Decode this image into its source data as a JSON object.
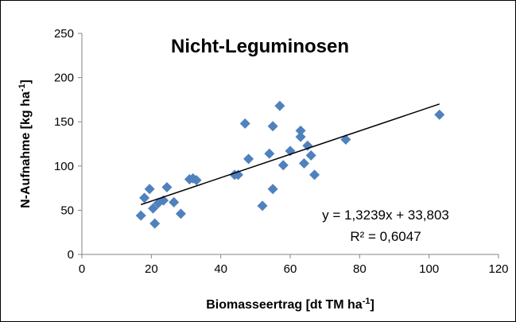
{
  "chart_data": {
    "type": "scatter",
    "title": "Nicht-Leguminosen",
    "xlabel": [
      "Biomasseertrag [dt TM ha",
      "-1",
      "]"
    ],
    "ylabel": [
      "N-Aufnahme [kg ha",
      "-1",
      "]"
    ],
    "x": [
      17,
      18,
      19.5,
      20.5,
      21,
      22,
      23.5,
      24.5,
      26.5,
      28.5,
      31,
      32,
      33,
      44,
      45,
      47,
      48,
      52,
      54,
      55,
      55,
      57,
      58,
      60,
      63,
      63,
      64,
      65,
      66,
      67,
      76,
      103
    ],
    "series": [
      {
        "name": "N-Aufnahme",
        "color": "#4f81bd",
        "values": [
          44,
          64,
          74,
          52,
          35,
          58,
          61,
          76,
          59,
          46,
          85,
          86,
          84,
          90,
          90,
          148,
          108,
          55,
          114,
          145,
          74,
          168,
          101,
          117,
          140,
          133,
          103,
          123,
          112,
          90,
          130,
          158
        ]
      }
    ],
    "trendline": {
      "slope": 1.3239,
      "intercept": 33.803,
      "color": "#000000"
    },
    "annotations": [
      "y = 1,3239x + 33,803",
      "R² = 0,6047"
    ],
    "xlim": [
      0,
      120
    ],
    "xticks": [
      0,
      20,
      40,
      60,
      80,
      100,
      120
    ],
    "ylim": [
      0,
      250
    ],
    "yticks": [
      0,
      50,
      100,
      150,
      200,
      250
    ],
    "grid": false
  }
}
